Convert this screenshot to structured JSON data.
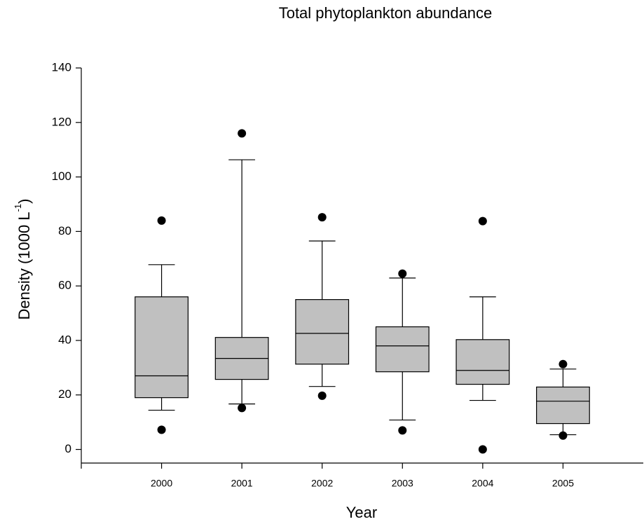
{
  "chart_data": {
    "type": "box",
    "title": "Total phytoplankton abundance",
    "x_label": "Year",
    "y_label": "Density (1000 L",
    "y_label_sup": "-1",
    "y_label_end": ")",
    "categories": [
      "2000",
      "2001",
      "2002",
      "2003",
      "2004",
      "2005"
    ],
    "color": "#c0c0c0",
    "boxes": [
      {
        "whisker_low": 14.4,
        "q1": 19,
        "median": 27,
        "q3": 56,
        "whisker_high": 67.8,
        "outliers": [
          84,
          7.2
        ]
      },
      {
        "whisker_low": 16.7,
        "q1": 25.7,
        "median": 33.4,
        "q3": 41.1,
        "whisker_high": 106.3,
        "outliers": [
          116,
          15.2
        ]
      },
      {
        "whisker_low": 23.1,
        "q1": 31.3,
        "median": 42.6,
        "q3": 55,
        "whisker_high": 76.5,
        "outliers": [
          85.2,
          19.7
        ]
      },
      {
        "whisker_low": 10.8,
        "q1": 28.5,
        "median": 38,
        "q3": 45,
        "whisker_high": 62.9,
        "outliers": [
          64.5,
          7
        ]
      },
      {
        "whisker_low": 18,
        "q1": 23.9,
        "median": 29,
        "q3": 40.3,
        "whisker_high": 56,
        "outliers": [
          83.8,
          0
        ]
      },
      {
        "whisker_low": 5.4,
        "q1": 9.5,
        "median": 17.7,
        "q3": 22.9,
        "whisker_high": 29.5,
        "outliers": [
          31.3,
          5.1
        ]
      }
    ],
    "ylim": [
      -5,
      140
    ],
    "yticks": [
      0,
      20,
      40,
      60,
      80,
      100,
      120,
      140
    ]
  }
}
